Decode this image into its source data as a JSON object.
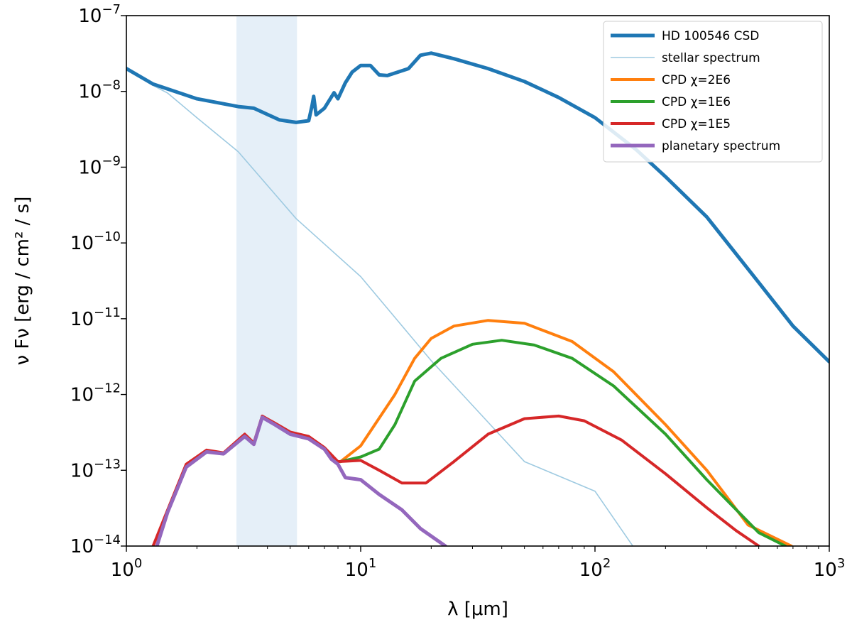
{
  "chart_data": {
    "type": "line",
    "title": "",
    "xlabel": "λ [μm]",
    "ylabel": "ν Fν [erg / cm² / s]",
    "xscale": "log",
    "yscale": "log",
    "xlim": [
      1,
      1000
    ],
    "ylim": [
      1e-14,
      1e-07
    ],
    "grid": false,
    "legend_position": "top-right",
    "x_tick_labels": [
      {
        "base": "10",
        "exp": "0",
        "value": 1
      },
      {
        "base": "10",
        "exp": "1",
        "value": 10
      },
      {
        "base": "10",
        "exp": "2",
        "value": 100
      },
      {
        "base": "10",
        "exp": "3",
        "value": 1000
      }
    ],
    "y_tick_labels": [
      {
        "base": "10",
        "exp": "−14",
        "value": 1e-14
      },
      {
        "base": "10",
        "exp": "−13",
        "value": 1e-13
      },
      {
        "base": "10",
        "exp": "−12",
        "value": 1e-12
      },
      {
        "base": "10",
        "exp": "−11",
        "value": 1e-11
      },
      {
        "base": "10",
        "exp": "−10",
        "value": 1e-10
      },
      {
        "base": "10",
        "exp": "−9",
        "value": 1e-09
      },
      {
        "base": "10",
        "exp": "−8",
        "value": 1e-08
      },
      {
        "base": "10",
        "exp": "−7",
        "value": 1e-07
      }
    ],
    "shaded_band": {
      "x": [
        2.95,
        5.35
      ],
      "color": "#c6dbef"
    },
    "series": [
      {
        "name": "HD 100546 CSD",
        "color": "#1f77b4",
        "style": "thick",
        "points": [
          [
            1.0,
            2e-08
          ],
          [
            1.3,
            1.25e-08
          ],
          [
            2.0,
            8e-09
          ],
          [
            3.0,
            6.3e-09
          ],
          [
            3.5,
            6e-09
          ],
          [
            4.5,
            4.2e-09
          ],
          [
            5.3,
            3.9e-09
          ],
          [
            6.0,
            4.1e-09
          ],
          [
            6.2,
            6.5e-09
          ],
          [
            6.3,
            8.6e-09
          ],
          [
            6.45,
            4.9e-09
          ],
          [
            7.0,
            6e-09
          ],
          [
            7.7,
            9.6e-09
          ],
          [
            8.0,
            8e-09
          ],
          [
            8.6,
            1.3e-08
          ],
          [
            9.2,
            1.8e-08
          ],
          [
            10.0,
            2.2e-08
          ],
          [
            11.0,
            2.2e-08
          ],
          [
            12.0,
            1.65e-08
          ],
          [
            13.0,
            1.62e-08
          ],
          [
            16.0,
            2e-08
          ],
          [
            18.0,
            3e-08
          ],
          [
            20.0,
            3.2e-08
          ],
          [
            25.0,
            2.7e-08
          ],
          [
            35.0,
            2e-08
          ],
          [
            50.0,
            1.35e-08
          ],
          [
            70.0,
            8.3e-09
          ],
          [
            100.0,
            4.5e-09
          ],
          [
            150.0,
            1.7e-09
          ],
          [
            200.0,
            7.5e-10
          ],
          [
            300.0,
            2.2e-10
          ],
          [
            500.0,
            3e-11
          ],
          [
            700.0,
            8e-12
          ],
          [
            1000.0,
            2.7e-12
          ]
        ]
      },
      {
        "name": "stellar spectrum",
        "color": "#9ecae1",
        "style": "thin",
        "points": [
          [
            1.0,
            2e-08
          ],
          [
            1.3,
            1.2e-08
          ],
          [
            1.5,
            9.5e-09
          ],
          [
            2.0,
            4.5e-09
          ],
          [
            3.0,
            1.6e-09
          ],
          [
            5.3,
            2.1e-10
          ],
          [
            10.0,
            3.6e-11
          ],
          [
            20.0,
            2.8e-12
          ],
          [
            50.0,
            1.3e-13
          ],
          [
            100.0,
            5.3e-14
          ],
          [
            145.0,
            1e-14
          ]
        ]
      },
      {
        "name": "CPD χ=2E6",
        "color": "#ff7f0e",
        "style": "normal",
        "points": [
          [
            8.2,
            1.3e-13
          ],
          [
            10.0,
            2.1e-13
          ],
          [
            14.0,
            1e-12
          ],
          [
            17.0,
            3e-12
          ],
          [
            20.0,
            5.5e-12
          ],
          [
            25.0,
            8e-12
          ],
          [
            35.0,
            9.5e-12
          ],
          [
            50.0,
            8.7e-12
          ],
          [
            80.0,
            5e-12
          ],
          [
            120.0,
            2e-12
          ],
          [
            200.0,
            4e-13
          ],
          [
            300.0,
            1e-13
          ],
          [
            450.0,
            1.9e-14
          ],
          [
            690.0,
            1e-14
          ]
        ]
      },
      {
        "name": "CPD χ=1E6",
        "color": "#2ca02c",
        "style": "normal",
        "points": [
          [
            8.2,
            1.3e-13
          ],
          [
            10.0,
            1.5e-13
          ],
          [
            12.0,
            1.9e-13
          ],
          [
            14.0,
            4e-13
          ],
          [
            17.0,
            1.5e-12
          ],
          [
            22.0,
            3e-12
          ],
          [
            30.0,
            4.6e-12
          ],
          [
            40.0,
            5.2e-12
          ],
          [
            55.0,
            4.5e-12
          ],
          [
            80.0,
            3e-12
          ],
          [
            120.0,
            1.3e-12
          ],
          [
            200.0,
            3e-13
          ],
          [
            300.0,
            7.5e-14
          ],
          [
            500.0,
            1.5e-14
          ],
          [
            650.0,
            1e-14
          ]
        ]
      },
      {
        "name": "CPD χ=1E5",
        "color": "#d62728",
        "style": "normal",
        "points": [
          [
            1.3,
            1e-14
          ],
          [
            1.5,
            3e-14
          ],
          [
            1.8,
            1.2e-13
          ],
          [
            2.2,
            1.85e-13
          ],
          [
            2.6,
            1.7e-13
          ],
          [
            3.2,
            3e-13
          ],
          [
            3.5,
            2.3e-13
          ],
          [
            3.8,
            5.2e-13
          ],
          [
            4.3,
            4.2e-13
          ],
          [
            5.0,
            3.2e-13
          ],
          [
            6.0,
            2.8e-13
          ],
          [
            7.0,
            2e-13
          ],
          [
            8.0,
            1.3e-13
          ],
          [
            10.0,
            1.35e-13
          ],
          [
            12.0,
            1e-13
          ],
          [
            15.0,
            6.8e-14
          ],
          [
            19.0,
            6.8e-14
          ],
          [
            25.0,
            1.3e-13
          ],
          [
            35.0,
            3e-13
          ],
          [
            50.0,
            4.8e-13
          ],
          [
            70.0,
            5.2e-13
          ],
          [
            90.0,
            4.5e-13
          ],
          [
            130.0,
            2.5e-13
          ],
          [
            200.0,
            9e-14
          ],
          [
            300.0,
            3.2e-14
          ],
          [
            400.0,
            1.6e-14
          ],
          [
            500.0,
            1e-14
          ]
        ]
      },
      {
        "name": "planetary spectrum",
        "color": "#9467bd",
        "style": "thick",
        "points": [
          [
            1.35,
            1e-14
          ],
          [
            1.5,
            2.8e-14
          ],
          [
            1.8,
            1.1e-13
          ],
          [
            2.2,
            1.75e-13
          ],
          [
            2.6,
            1.65e-13
          ],
          [
            3.2,
            2.8e-13
          ],
          [
            3.5,
            2.2e-13
          ],
          [
            3.8,
            5e-13
          ],
          [
            4.3,
            4e-13
          ],
          [
            5.0,
            3e-13
          ],
          [
            6.0,
            2.6e-13
          ],
          [
            7.0,
            1.9e-13
          ],
          [
            7.5,
            1.4e-13
          ],
          [
            8.0,
            1.2e-13
          ],
          [
            8.6,
            8e-14
          ],
          [
            10.0,
            7.5e-14
          ],
          [
            12.0,
            4.8e-14
          ],
          [
            15.0,
            3e-14
          ],
          [
            18.0,
            1.7e-14
          ],
          [
            22.0,
            1.1e-14
          ],
          [
            23.0,
            1e-14
          ]
        ]
      }
    ]
  }
}
